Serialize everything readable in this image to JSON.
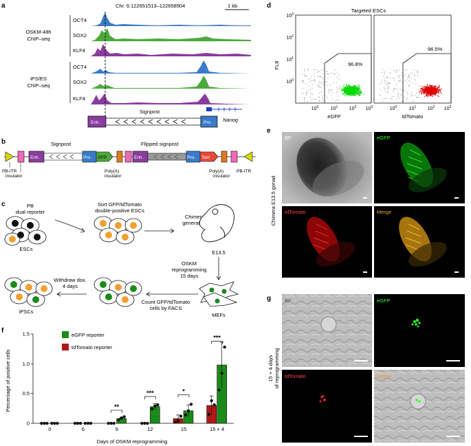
{
  "panels": {
    "a": {
      "letter": "a",
      "locus": "Chr. 6:122651513–122658904",
      "scale": "1 kb",
      "group1": [
        "OSKM-48h",
        "ChIP–seq"
      ],
      "group2": [
        "iPS/ES",
        "ChIP–seq"
      ],
      "tracks": [
        "OCT4",
        "SOX2",
        "KLF4"
      ],
      "signpost": "Signpost",
      "enh": "Enh.",
      "pro": "Pro.",
      "gene": "Nanog"
    },
    "b": {
      "letter": "b",
      "signpost": "Signpost",
      "flipped": "Flipped signpost",
      "enh": "Enh.",
      "pro": "Pro.",
      "gfp": "GFP",
      "tom": "Tom",
      "pbitr": "PB-ITR",
      "insulator": "insulator",
      "polya": "Poly(A)"
    },
    "c": {
      "letter": "c",
      "pb": [
        "PB",
        "dual reporter"
      ],
      "sort": [
        "Sort GFP/tdTomato",
        "double-positive ESCs"
      ],
      "chimera": [
        "Chimera",
        "generation"
      ],
      "escs": "ESCs",
      "e135": "E13.5",
      "oskm": [
        "OSKM",
        "reprogramming",
        "15 days"
      ],
      "withdraw": [
        "Withdraw dox.",
        "4 days"
      ],
      "count": [
        "Count GFP/tdTomato",
        "cells by FACS"
      ],
      "mefs": "MEFs",
      "ipscs": "iPSCs"
    },
    "d": {
      "letter": "d",
      "title": "Targeted ESCs",
      "ylabel": "FL8",
      "xlabel1": "eGFP",
      "xlabel2": "tdTomato",
      "pct1": "96.8%",
      "pct2": "96.5%",
      "colors": {
        "green": "#00d800",
        "red": "#e00000",
        "gray": "#9a9a9a"
      }
    },
    "e": {
      "letter": "e",
      "side": "Chimera E13.5 gonad",
      "tiles": [
        "BF",
        "eGFP",
        "tdTomato",
        "Merge"
      ]
    },
    "g": {
      "letter": "g",
      "side": [
        "15 + 4 days",
        "of reprogramming"
      ],
      "tiles": [
        "BF",
        "eGFP",
        "tdTomato",
        "Merge"
      ]
    },
    "f": {
      "letter": "f",
      "ylabel": "Percentage of positive cells",
      "xlabel": "Days of OSKM reprogramming",
      "legend": [
        "eGFP reporter",
        "tdTomato reporter"
      ],
      "sig": [
        "**",
        "***",
        "*",
        "***"
      ]
    }
  },
  "chart_data": {
    "type": "bar",
    "categories": [
      "0",
      "6",
      "9",
      "12",
      "15",
      "15 + 4"
    ],
    "series": [
      {
        "name": "tdTomato reporter",
        "values": [
          0,
          0,
          0,
          0,
          0.08,
          0.3
        ],
        "color": "#b01818",
        "points": [
          [
            0,
            0,
            0
          ],
          [
            0,
            0,
            0
          ],
          [
            0,
            0,
            0
          ],
          [
            0,
            0,
            0
          ],
          [
            0.02,
            0.04,
            0.12
          ],
          [
            0.15,
            0.38,
            0.31
          ]
        ]
      },
      {
        "name": "eGFP reporter",
        "values": [
          0,
          0,
          0.08,
          0.28,
          0.21,
          0.98
        ],
        "color": "#1a8a1a",
        "points": [
          [
            0,
            0,
            0
          ],
          [
            0,
            0,
            0
          ],
          [
            0.06,
            0.09,
            0.11
          ],
          [
            0.24,
            0.29,
            0.31
          ],
          [
            0.14,
            0.21,
            0.32
          ],
          [
            0.56,
            0.84,
            1.28
          ]
        ]
      }
    ],
    "errors": [
      [
        0,
        0,
        0,
        0,
        0.06,
        0.16
      ],
      [
        0,
        0,
        0.02,
        0.05,
        0.1,
        0.38
      ]
    ],
    "ylim": [
      0,
      1.5
    ],
    "yticks": [
      "0",
      "0.5",
      "1.0",
      "1.5"
    ],
    "xlabel": "Days of OSKM reprogramming",
    "ylabel": "Percentage of positive cells"
  }
}
